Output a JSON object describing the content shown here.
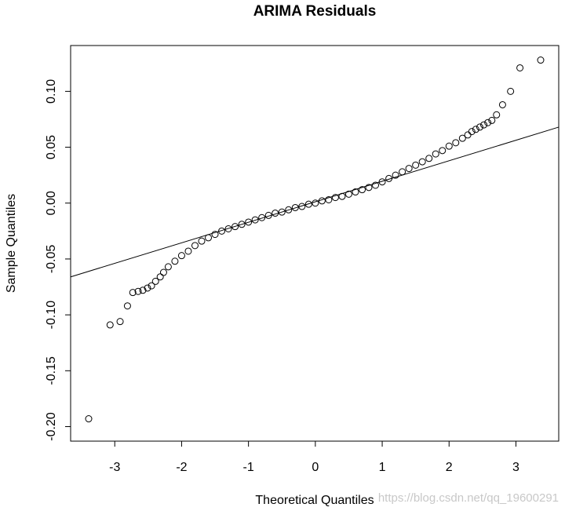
{
  "chart_data": {
    "type": "scatter",
    "title": "ARIMA Residuals",
    "xlabel": "Theoretical Quantiles",
    "ylabel": "Sample Quantiles",
    "annotation": "https://blog.csdn.net/qq_19600291",
    "xlim": [
      -3.66,
      3.64
    ],
    "ylim": [
      -0.213,
      0.141
    ],
    "xticks": [
      -3,
      -2,
      -1,
      0,
      1,
      2,
      3
    ],
    "yticks": [
      {
        "value": -0.2,
        "label": "-0.20"
      },
      {
        "value": -0.15,
        "label": "-0.15"
      },
      {
        "value": -0.1,
        "label": "-0.10"
      },
      {
        "value": -0.05,
        "label": "-0.05"
      },
      {
        "value": 0,
        "label": "0.00"
      },
      {
        "value": 0.05,
        "label": "0.05"
      },
      {
        "value": 0.1,
        "label": "0.10"
      }
    ],
    "series": [
      {
        "color": "#000000",
        "x": [
          -3.39,
          -3.07,
          -2.92,
          -2.81,
          -2.73,
          -2.65,
          -2.58,
          -2.51,
          -2.45,
          -2.39,
          -2.32,
          -2.27,
          -2.2,
          -2.1,
          -2.0,
          -1.9,
          -1.8,
          -1.7,
          -1.6,
          -1.5,
          -1.4,
          -1.3,
          -1.2,
          -1.1,
          -1.0,
          -0.9,
          -0.8,
          -0.7,
          -0.6,
          -0.5,
          -0.4,
          -0.3,
          -0.2,
          -0.1,
          0,
          0.1,
          0.2,
          0.3,
          0.4,
          0.5,
          0.6,
          0.7,
          0.8,
          0.9,
          1.0,
          1.1,
          1.2,
          1.3,
          1.4,
          1.5,
          1.6,
          1.7,
          1.8,
          1.9,
          2.0,
          2.1,
          2.2,
          2.28,
          2.34,
          2.4,
          2.46,
          2.52,
          2.58,
          2.64,
          2.71,
          2.8,
          2.92,
          3.06,
          3.37
        ],
        "values": [
          -0.193,
          -0.109,
          -0.106,
          -0.092,
          -0.08,
          -0.079,
          -0.078,
          -0.076,
          -0.074,
          -0.07,
          -0.066,
          -0.062,
          -0.057,
          -0.052,
          -0.047,
          -0.043,
          -0.038,
          -0.034,
          -0.031,
          -0.028,
          -0.025,
          -0.023,
          -0.021,
          -0.019,
          -0.017,
          -0.015,
          -0.013,
          -0.011,
          -0.009,
          -0.008,
          -0.006,
          -0.004,
          -0.003,
          -0.001,
          0.0,
          0.002,
          0.003,
          0.005,
          0.006,
          0.008,
          0.01,
          0.012,
          0.014,
          0.016,
          0.019,
          0.022,
          0.025,
          0.028,
          0.031,
          0.034,
          0.037,
          0.04,
          0.044,
          0.047,
          0.051,
          0.054,
          0.058,
          0.061,
          0.064,
          0.066,
          0.068,
          0.07,
          0.072,
          0.074,
          0.079,
          0.088,
          0.1,
          0.121,
          0.128
        ]
      }
    ],
    "reference_line": {
      "color": "#000000",
      "x": [
        -3.66,
        3.64
      ],
      "y": [
        -0.066,
        0.068
      ]
    }
  }
}
